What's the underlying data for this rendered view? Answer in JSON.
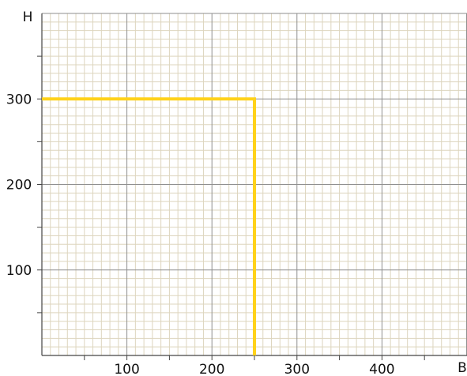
{
  "chart_data": {
    "type": "line",
    "xlabel": "B",
    "ylabel": "H",
    "x_ticks": [
      {
        "value": 100,
        "label": "100"
      },
      {
        "value": 200,
        "label": "200"
      },
      {
        "value": 300,
        "label": "300"
      },
      {
        "value": 400,
        "label": "400"
      }
    ],
    "y_ticks": [
      {
        "value": 100,
        "label": "100"
      },
      {
        "value": 200,
        "label": "200"
      },
      {
        "value": 300,
        "label": "300"
      }
    ],
    "xlim": [
      0,
      500
    ],
    "ylim": [
      0,
      400
    ],
    "grid": true,
    "fine_grid_step": 10,
    "major_grid_step": 100,
    "series": [
      {
        "color": "#ffd21a",
        "points": [
          [
            0,
            300
          ],
          [
            250,
            300
          ],
          [
            250,
            0
          ]
        ]
      }
    ],
    "colors": {
      "fine_grid": "#ddd5be",
      "major_grid": "#8f8f8f",
      "axis": "#444444"
    }
  }
}
